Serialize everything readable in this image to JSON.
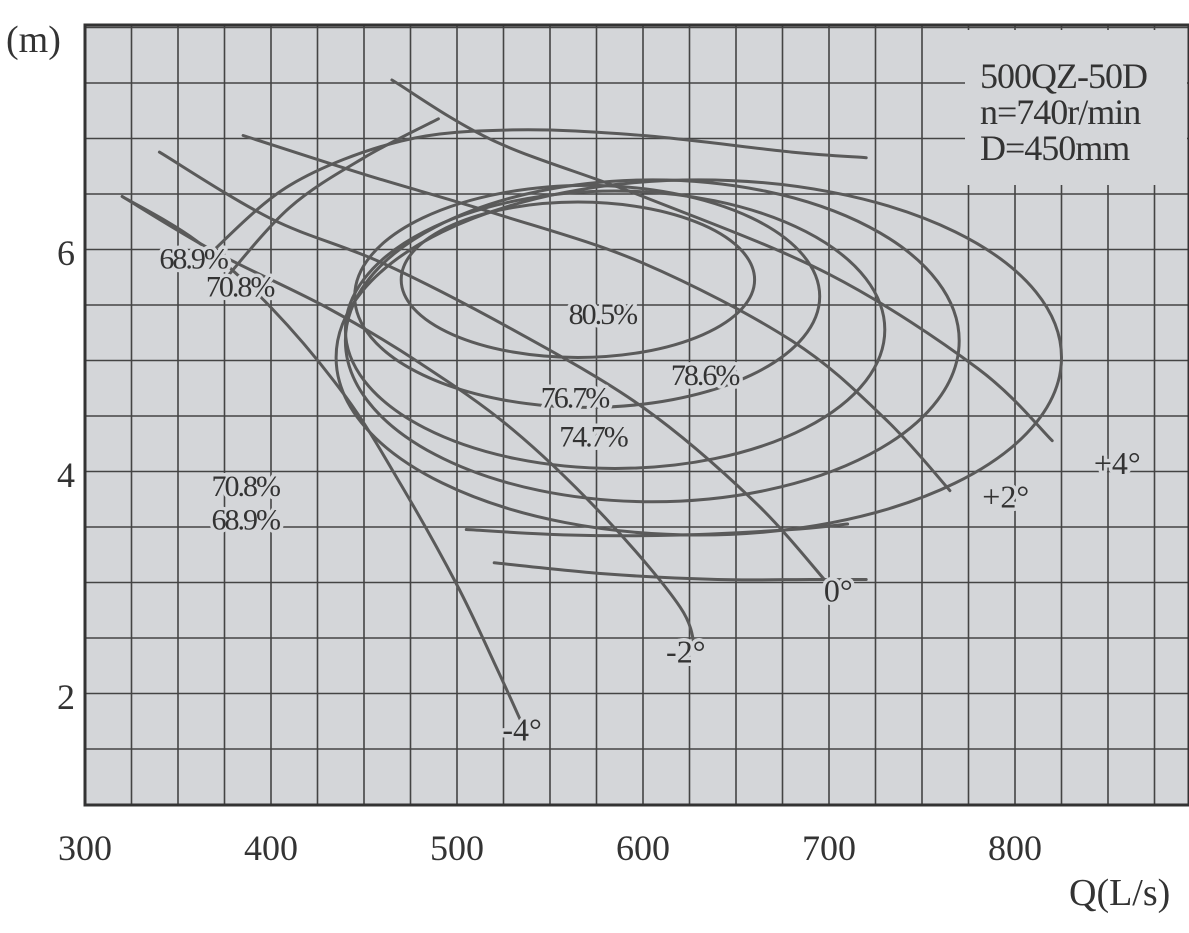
{
  "chart_data": {
    "type": "line",
    "title_lines": [
      "500QZ-50D",
      "n=740r/min",
      "D=450mm"
    ],
    "xlabel": "Q(L/s)",
    "ylabel": "(m)",
    "xlim": [
      300,
      920
    ],
    "ylim": [
      1,
      8
    ],
    "x_ticks": [
      300,
      400,
      500,
      600,
      700,
      800
    ],
    "y_ticks": [
      2,
      4,
      6
    ],
    "grid": true,
    "series": [
      {
        "name": "+4°",
        "x": [
          465,
          520,
          600,
          700,
          780,
          820
        ],
        "y": [
          7.55,
          7.0,
          6.5,
          5.8,
          4.95,
          4.3
        ]
      },
      {
        "name": "+2°",
        "x": [
          385,
          450,
          520,
          600,
          680,
          730,
          765
        ],
        "y": [
          7.05,
          6.7,
          6.35,
          5.9,
          5.2,
          4.5,
          3.85
        ]
      },
      {
        "name": "0°",
        "x": [
          340,
          400,
          460,
          530,
          600,
          660,
          700
        ],
        "y": [
          6.9,
          6.3,
          5.9,
          5.3,
          4.6,
          3.75,
          3.0
        ]
      },
      {
        "name": "-2°",
        "x": [
          320,
          370,
          430,
          480,
          530,
          580,
          620,
          628
        ],
        "y": [
          6.5,
          6.0,
          5.5,
          5.0,
          4.4,
          3.6,
          2.8,
          2.4
        ]
      },
      {
        "name": "-4°",
        "x": [
          320,
          360,
          400,
          440,
          470,
          500,
          520,
          535
        ],
        "y": [
          6.5,
          6.1,
          5.5,
          4.7,
          3.9,
          3.0,
          2.3,
          1.75
        ]
      }
    ],
    "efficiency_contours": [
      {
        "name": "80.5%",
        "center": [
          565,
          5.75
        ],
        "half_width_q": 95,
        "half_height_h": 0.7,
        "tilt_deg": 0
      },
      {
        "name": "78.6%",
        "center": [
          570,
          5.6
        ],
        "half_width_q": 125,
        "half_height_h": 1.0,
        "tilt_deg": 0
      },
      {
        "name": "76.7%",
        "center": [
          585,
          5.3
        ],
        "half_width_q": 145,
        "half_height_h": 1.25,
        "tilt_deg": 0
      },
      {
        "name": "74.7%",
        "center": [
          605,
          5.2
        ],
        "half_width_q": 165,
        "half_height_h": 1.45,
        "tilt_deg": 0
      },
      {
        "name": "70.8%",
        "center": [
          630,
          5.05
        ],
        "half_width_q": 195,
        "half_height_h": 1.6,
        "tilt_deg": 0
      }
    ],
    "efficiency_branches": [
      {
        "name": "70.8%",
        "x": [
          375,
          410,
          450,
          490
        ],
        "y": [
          5.75,
          6.4,
          6.85,
          7.2
        ]
      },
      {
        "name": "68.9%",
        "x": [
          365,
          410,
          470,
          530,
          600,
          680,
          720
        ],
        "y": [
          5.95,
          6.6,
          7.0,
          7.1,
          7.05,
          6.9,
          6.85
        ]
      },
      {
        "name": "70.8%",
        "x": [
          505,
          560,
          620,
          680,
          710
        ],
        "y": [
          3.5,
          3.45,
          3.45,
          3.5,
          3.55
        ]
      },
      {
        "name": "68.9%",
        "x": [
          520,
          580,
          640,
          690,
          720
        ],
        "y": [
          3.2,
          3.1,
          3.05,
          3.05,
          3.05
        ]
      }
    ],
    "efficiency_labels": [
      {
        "text": "80.5%",
        "x": 560,
        "y": 5.35
      },
      {
        "text": "78.6%",
        "x": 615,
        "y": 4.8
      },
      {
        "text": "76.7%",
        "x": 545,
        "y": 4.6
      },
      {
        "text": "74.7%",
        "x": 555,
        "y": 4.25
      },
      {
        "text": "70.8%",
        "x": 368,
        "y": 3.8
      },
      {
        "text": "68.9%",
        "x": 368,
        "y": 3.5
      },
      {
        "text": "68.9%",
        "x": 340,
        "y": 5.85
      },
      {
        "text": "70.8%",
        "x": 365,
        "y": 5.6
      }
    ],
    "blade_labels": [
      {
        "text": "+4°",
        "x": 855,
        "y": 4.0
      },
      {
        "text": "+2°",
        "x": 795,
        "y": 3.7
      },
      {
        "text": "0°",
        "x": 705,
        "y": 2.85
      },
      {
        "text": "-2°",
        "x": 623,
        "y": 2.3
      },
      {
        "text": "-4°",
        "x": 535,
        "y": 1.6
      }
    ]
  }
}
